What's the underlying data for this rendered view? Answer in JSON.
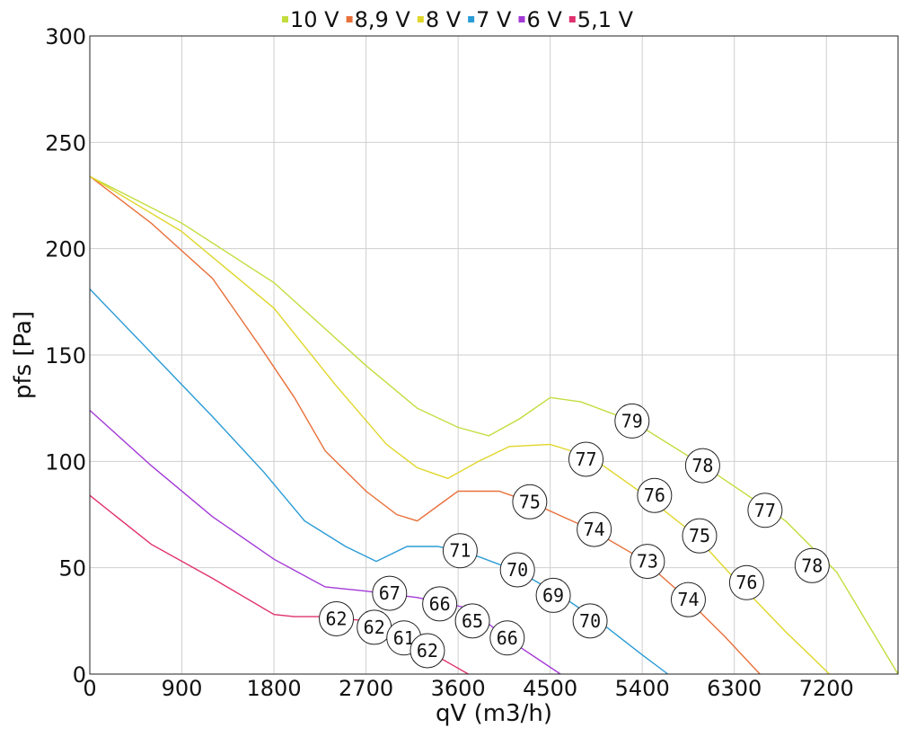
{
  "chart_data": {
    "type": "line",
    "xlabel": "qV (m3/h)",
    "ylabel": "pfs [Pa]",
    "xlim": [
      0,
      7900
    ],
    "ylim": [
      0,
      300
    ],
    "x_ticks": [
      0,
      900,
      1800,
      2700,
      3600,
      4500,
      5400,
      6300,
      7200
    ],
    "x_tick_labels": [
      "0",
      "900",
      "1800",
      "2700",
      "3600",
      "4500",
      "5400",
      "6300",
      "7200"
    ],
    "y_ticks": [
      0,
      50,
      100,
      150,
      200,
      250,
      300
    ],
    "y_tick_labels": [
      "0",
      "50",
      "100",
      "150",
      "200",
      "250",
      "300"
    ],
    "grid": true,
    "legend_position": "top",
    "series": [
      {
        "name": "10 V",
        "color": "#c2dd3d",
        "points": [
          [
            0,
            234
          ],
          [
            900,
            212
          ],
          [
            1800,
            184
          ],
          [
            2700,
            145
          ],
          [
            3200,
            125
          ],
          [
            3600,
            116
          ],
          [
            3900,
            112
          ],
          [
            4200,
            120
          ],
          [
            4500,
            130
          ],
          [
            4800,
            128
          ],
          [
            5300,
            119
          ],
          [
            6000,
            98
          ],
          [
            6400,
            85
          ],
          [
            6800,
            72
          ],
          [
            7300,
            48
          ],
          [
            7900,
            0
          ]
        ]
      },
      {
        "name": "8,9 V",
        "color": "#e8703a",
        "points": [
          [
            0,
            234
          ],
          [
            600,
            212
          ],
          [
            1200,
            186
          ],
          [
            1650,
            155
          ],
          [
            2000,
            130
          ],
          [
            2300,
            105
          ],
          [
            2700,
            86
          ],
          [
            3000,
            75
          ],
          [
            3200,
            72
          ],
          [
            3400,
            79
          ],
          [
            3600,
            86
          ],
          [
            4000,
            86
          ],
          [
            4300,
            81
          ],
          [
            4900,
            68
          ],
          [
            5400,
            54
          ],
          [
            5800,
            37
          ],
          [
            6200,
            18
          ],
          [
            6550,
            0
          ]
        ]
      },
      {
        "name": "8 V",
        "color": "#e0d62a",
        "points": [
          [
            0,
            234
          ],
          [
            900,
            208
          ],
          [
            1800,
            172
          ],
          [
            2400,
            136
          ],
          [
            2900,
            108
          ],
          [
            3200,
            97
          ],
          [
            3500,
            92
          ],
          [
            3800,
            100
          ],
          [
            4100,
            107
          ],
          [
            4500,
            108
          ],
          [
            4900,
            102
          ],
          [
            5400,
            85
          ],
          [
            5900,
            66
          ],
          [
            6300,
            45
          ],
          [
            6800,
            20
          ],
          [
            7230,
            0
          ]
        ]
      },
      {
        "name": "7 V",
        "color": "#2a9bd6",
        "points": [
          [
            0,
            181
          ],
          [
            600,
            151
          ],
          [
            1200,
            121
          ],
          [
            1700,
            95
          ],
          [
            2100,
            72
          ],
          [
            2500,
            60
          ],
          [
            2800,
            53
          ],
          [
            3100,
            60
          ],
          [
            3400,
            60
          ],
          [
            3700,
            57
          ],
          [
            4200,
            48
          ],
          [
            4600,
            37
          ],
          [
            5000,
            24
          ],
          [
            5400,
            9
          ],
          [
            5650,
            0
          ]
        ]
      },
      {
        "name": "6 V",
        "color": "#a33ad6",
        "points": [
          [
            0,
            124
          ],
          [
            600,
            98
          ],
          [
            1200,
            74
          ],
          [
            1800,
            54
          ],
          [
            2300,
            41
          ],
          [
            2700,
            39
          ],
          [
            3200,
            36
          ],
          [
            3700,
            31
          ],
          [
            4100,
            16
          ],
          [
            4600,
            0
          ]
        ]
      },
      {
        "name": "5,1 V",
        "color": "#e0306e",
        "points": [
          [
            0,
            84
          ],
          [
            600,
            61
          ],
          [
            1200,
            45
          ],
          [
            1800,
            28
          ],
          [
            2000,
            27
          ],
          [
            2300,
            27
          ],
          [
            2700,
            25
          ],
          [
            3000,
            18
          ],
          [
            3300,
            11
          ],
          [
            3700,
            0
          ]
        ]
      }
    ],
    "bubbles": [
      {
        "label": "79",
        "x": 5300,
        "y": 119
      },
      {
        "label": "78",
        "x": 5990,
        "y": 98
      },
      {
        "label": "77",
        "x": 6600,
        "y": 77
      },
      {
        "label": "78",
        "x": 7060,
        "y": 51
      },
      {
        "label": "77",
        "x": 4850,
        "y": 101
      },
      {
        "label": "76",
        "x": 5520,
        "y": 84
      },
      {
        "label": "75",
        "x": 5960,
        "y": 65
      },
      {
        "label": "76",
        "x": 6420,
        "y": 43
      },
      {
        "label": "75",
        "x": 4300,
        "y": 81
      },
      {
        "label": "74",
        "x": 4930,
        "y": 68
      },
      {
        "label": "73",
        "x": 5450,
        "y": 53
      },
      {
        "label": "74",
        "x": 5850,
        "y": 35
      },
      {
        "label": "71",
        "x": 3620,
        "y": 58
      },
      {
        "label": "70",
        "x": 4180,
        "y": 49
      },
      {
        "label": "69",
        "x": 4530,
        "y": 37
      },
      {
        "label": "70",
        "x": 4890,
        "y": 25
      },
      {
        "label": "67",
        "x": 2930,
        "y": 38
      },
      {
        "label": "66",
        "x": 3420,
        "y": 33
      },
      {
        "label": "65",
        "x": 3740,
        "y": 25
      },
      {
        "label": "66",
        "x": 4080,
        "y": 17
      },
      {
        "label": "62",
        "x": 2410,
        "y": 26
      },
      {
        "label": "62",
        "x": 2780,
        "y": 22
      },
      {
        "label": "61",
        "x": 3070,
        "y": 17
      },
      {
        "label": "62",
        "x": 3300,
        "y": 11
      }
    ]
  }
}
